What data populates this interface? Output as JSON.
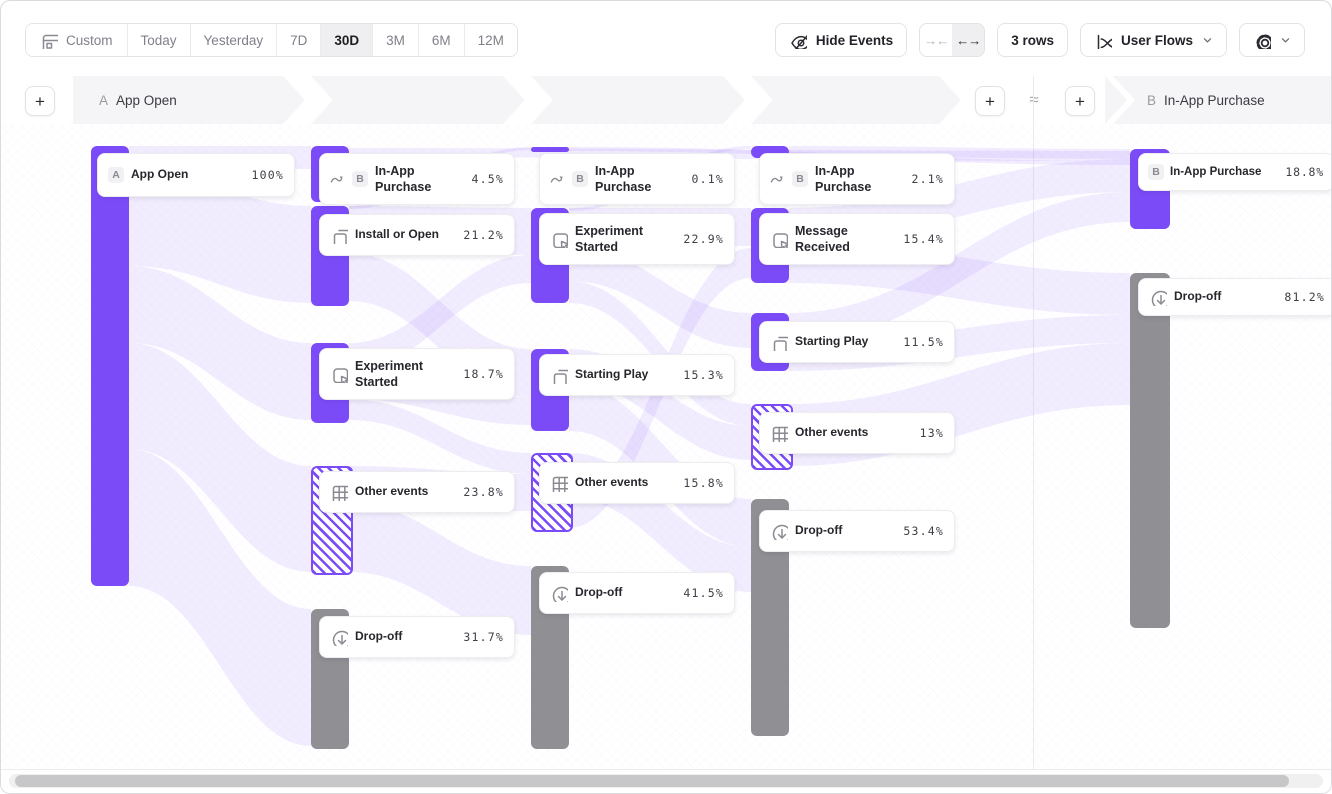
{
  "toolbar": {
    "ranges": [
      "Custom",
      "Today",
      "Yesterday",
      "7D",
      "30D",
      "3M",
      "6M",
      "12M"
    ],
    "selected_range": "30D",
    "hide_events": "Hide Events",
    "collapse_glyph": "→←",
    "expand_glyph": "←→",
    "rows": "3 rows",
    "view": "User Flows"
  },
  "header": {
    "add": "+",
    "approx": "≈",
    "start_badge": "A",
    "start_label": "App Open",
    "end_badge": "B",
    "end_label": "In-App Purchase"
  },
  "flow": {
    "columns": [
      {
        "nodes": [
          {
            "badge": "A",
            "label": "App Open",
            "pct": "100%",
            "type": "start"
          }
        ]
      },
      {
        "nodes": [
          {
            "icon": "skip",
            "badge": "B",
            "label": "In-App Purchase",
            "pct": "4.5%",
            "type": "goal"
          },
          {
            "icon": "copy",
            "label": "Install or Open",
            "pct": "21.2%",
            "type": "event"
          },
          {
            "icon": "click",
            "label": "Experiment Started",
            "pct": "18.7%",
            "type": "event"
          },
          {
            "icon": "grid",
            "label": "Other events",
            "pct": "23.8%",
            "type": "other"
          },
          {
            "icon": "dropoff",
            "label": "Drop-off",
            "pct": "31.7%",
            "type": "dropoff"
          }
        ]
      },
      {
        "nodes": [
          {
            "icon": "skip",
            "badge": "B",
            "label": "In-App Purchase",
            "pct": "0.1%",
            "type": "goal"
          },
          {
            "icon": "click",
            "label": "Experiment Started",
            "pct": "22.9%",
            "type": "event"
          },
          {
            "icon": "copy",
            "label": "Starting Play",
            "pct": "15.3%",
            "type": "event"
          },
          {
            "icon": "grid",
            "label": "Other events",
            "pct": "15.8%",
            "type": "other"
          },
          {
            "icon": "dropoff",
            "label": "Drop-off",
            "pct": "41.5%",
            "type": "dropoff"
          }
        ]
      },
      {
        "nodes": [
          {
            "icon": "skip",
            "badge": "B",
            "label": "In-App Purchase",
            "pct": "2.1%",
            "type": "goal"
          },
          {
            "icon": "click",
            "label": "Message Received",
            "pct": "15.4%",
            "type": "event"
          },
          {
            "icon": "copy",
            "label": "Starting Play",
            "pct": "11.5%",
            "type": "event"
          },
          {
            "icon": "grid",
            "label": "Other events",
            "pct": "13%",
            "type": "other"
          },
          {
            "icon": "dropoff",
            "label": "Drop-off",
            "pct": "53.4%",
            "type": "dropoff"
          }
        ]
      },
      {
        "nodes": [
          {
            "badge": "B",
            "label": "In-App Purchase",
            "pct": "18.8%",
            "type": "goal"
          },
          {
            "icon": "dropoff",
            "label": "Drop-off",
            "pct": "81.2%",
            "type": "dropoff"
          }
        ]
      }
    ]
  },
  "colors": {
    "accent": "#7C4BF8",
    "dropoff_gray": "#8F8F94",
    "ribbon": "#E9E3FC"
  }
}
